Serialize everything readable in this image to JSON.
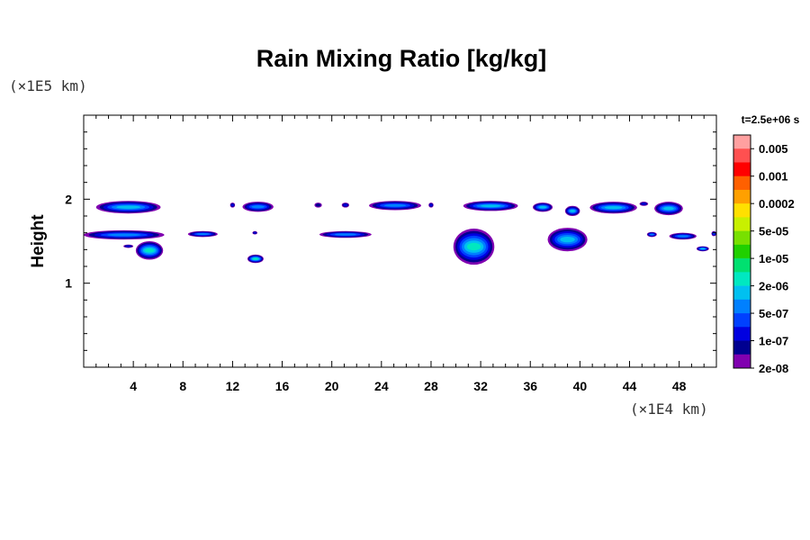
{
  "chart_data": {
    "type": "heatmap",
    "title": "Rain Mixing Ratio [kg/kg]",
    "ylabel": "Height",
    "y_unit": "(×1E5 km)",
    "x_unit": "(×1E4 km)",
    "time_label": "t=2.5e+06 s",
    "xlim": [
      0,
      51
    ],
    "ylim": [
      0,
      3
    ],
    "x_ticks": [
      4,
      8,
      12,
      16,
      20,
      24,
      28,
      32,
      36,
      40,
      44,
      48
    ],
    "x_tick_labels": [
      "4",
      "8",
      "12",
      "16",
      "20",
      "24",
      "28",
      "32",
      "36",
      "40",
      "44",
      "48"
    ],
    "y_ticks": [
      1,
      2
    ],
    "y_tick_labels": [
      "1",
      "2"
    ],
    "colorbar": {
      "labels": [
        "0.005",
        "0.001",
        "0.0002",
        "5e-05",
        "1e-05",
        "2e-06",
        "5e-07",
        "1e-07",
        "2e-08"
      ],
      "colors": [
        "#ffa0a0",
        "#ff5050",
        "#ff0000",
        "#ff6000",
        "#ffa000",
        "#ffe000",
        "#c8f000",
        "#78e000",
        "#20d000",
        "#00e070",
        "#00e8c0",
        "#00c0f0",
        "#0080ff",
        "#0040ff",
        "#0000e0",
        "#000090",
        "#8000b0"
      ]
    },
    "regions": [
      {
        "x": [
          1.0,
          6.2
        ],
        "y": [
          1.83,
          1.98
        ],
        "level": 6
      },
      {
        "x": [
          11.8,
          12.2
        ],
        "y": [
          1.9,
          1.96
        ],
        "level": 3
      },
      {
        "x": [
          12.8,
          15.3
        ],
        "y": [
          1.85,
          1.97
        ],
        "level": 5
      },
      {
        "x": [
          18.6,
          19.2
        ],
        "y": [
          1.9,
          1.96
        ],
        "level": 2
      },
      {
        "x": [
          20.8,
          21.4
        ],
        "y": [
          1.9,
          1.96
        ],
        "level": 3
      },
      {
        "x": [
          23.0,
          27.2
        ],
        "y": [
          1.87,
          1.98
        ],
        "level": 5
      },
      {
        "x": [
          27.8,
          28.2
        ],
        "y": [
          1.9,
          1.96
        ],
        "level": 3
      },
      {
        "x": [
          30.6,
          35.0
        ],
        "y": [
          1.86,
          1.98
        ],
        "level": 6
      },
      {
        "x": [
          36.2,
          37.8
        ],
        "y": [
          1.85,
          1.96
        ],
        "level": 6
      },
      {
        "x": [
          38.8,
          40.0
        ],
        "y": [
          1.8,
          1.92
        ],
        "level": 6
      },
      {
        "x": [
          40.8,
          44.6
        ],
        "y": [
          1.83,
          1.97
        ],
        "level": 6
      },
      {
        "x": [
          44.8,
          45.5
        ],
        "y": [
          1.92,
          1.97
        ],
        "level": 3
      },
      {
        "x": [
          46.0,
          48.3
        ],
        "y": [
          1.81,
          1.97
        ],
        "level": 6
      },
      {
        "x": [
          0.0,
          6.5
        ],
        "y": [
          1.52,
          1.63
        ],
        "level": 5
      },
      {
        "x": [
          3.2,
          4.0
        ],
        "y": [
          1.42,
          1.46
        ],
        "level": 3
      },
      {
        "x": [
          4.2,
          6.4
        ],
        "y": [
          1.28,
          1.5
        ],
        "level": 7
      },
      {
        "x": [
          8.4,
          10.8
        ],
        "y": [
          1.55,
          1.62
        ],
        "level": 5
      },
      {
        "x": [
          13.2,
          14.5
        ],
        "y": [
          1.24,
          1.34
        ],
        "level": 7
      },
      {
        "x": [
          13.6,
          14.0
        ],
        "y": [
          1.58,
          1.62
        ],
        "level": 3
      },
      {
        "x": [
          19.0,
          23.2
        ],
        "y": [
          1.54,
          1.62
        ],
        "level": 5
      },
      {
        "x": [
          29.8,
          33.1
        ],
        "y": [
          1.22,
          1.65
        ],
        "level": 7
      },
      {
        "x": [
          37.4,
          40.6
        ],
        "y": [
          1.38,
          1.66
        ],
        "level": 6
      },
      {
        "x": [
          45.4,
          46.2
        ],
        "y": [
          1.55,
          1.61
        ],
        "level": 5
      },
      {
        "x": [
          47.2,
          49.4
        ],
        "y": [
          1.52,
          1.6
        ],
        "level": 5
      },
      {
        "x": [
          49.4,
          50.4
        ],
        "y": [
          1.38,
          1.44
        ],
        "level": 6
      },
      {
        "x": [
          50.6,
          51.0
        ],
        "y": [
          1.56,
          1.62
        ],
        "level": 4
      }
    ]
  }
}
